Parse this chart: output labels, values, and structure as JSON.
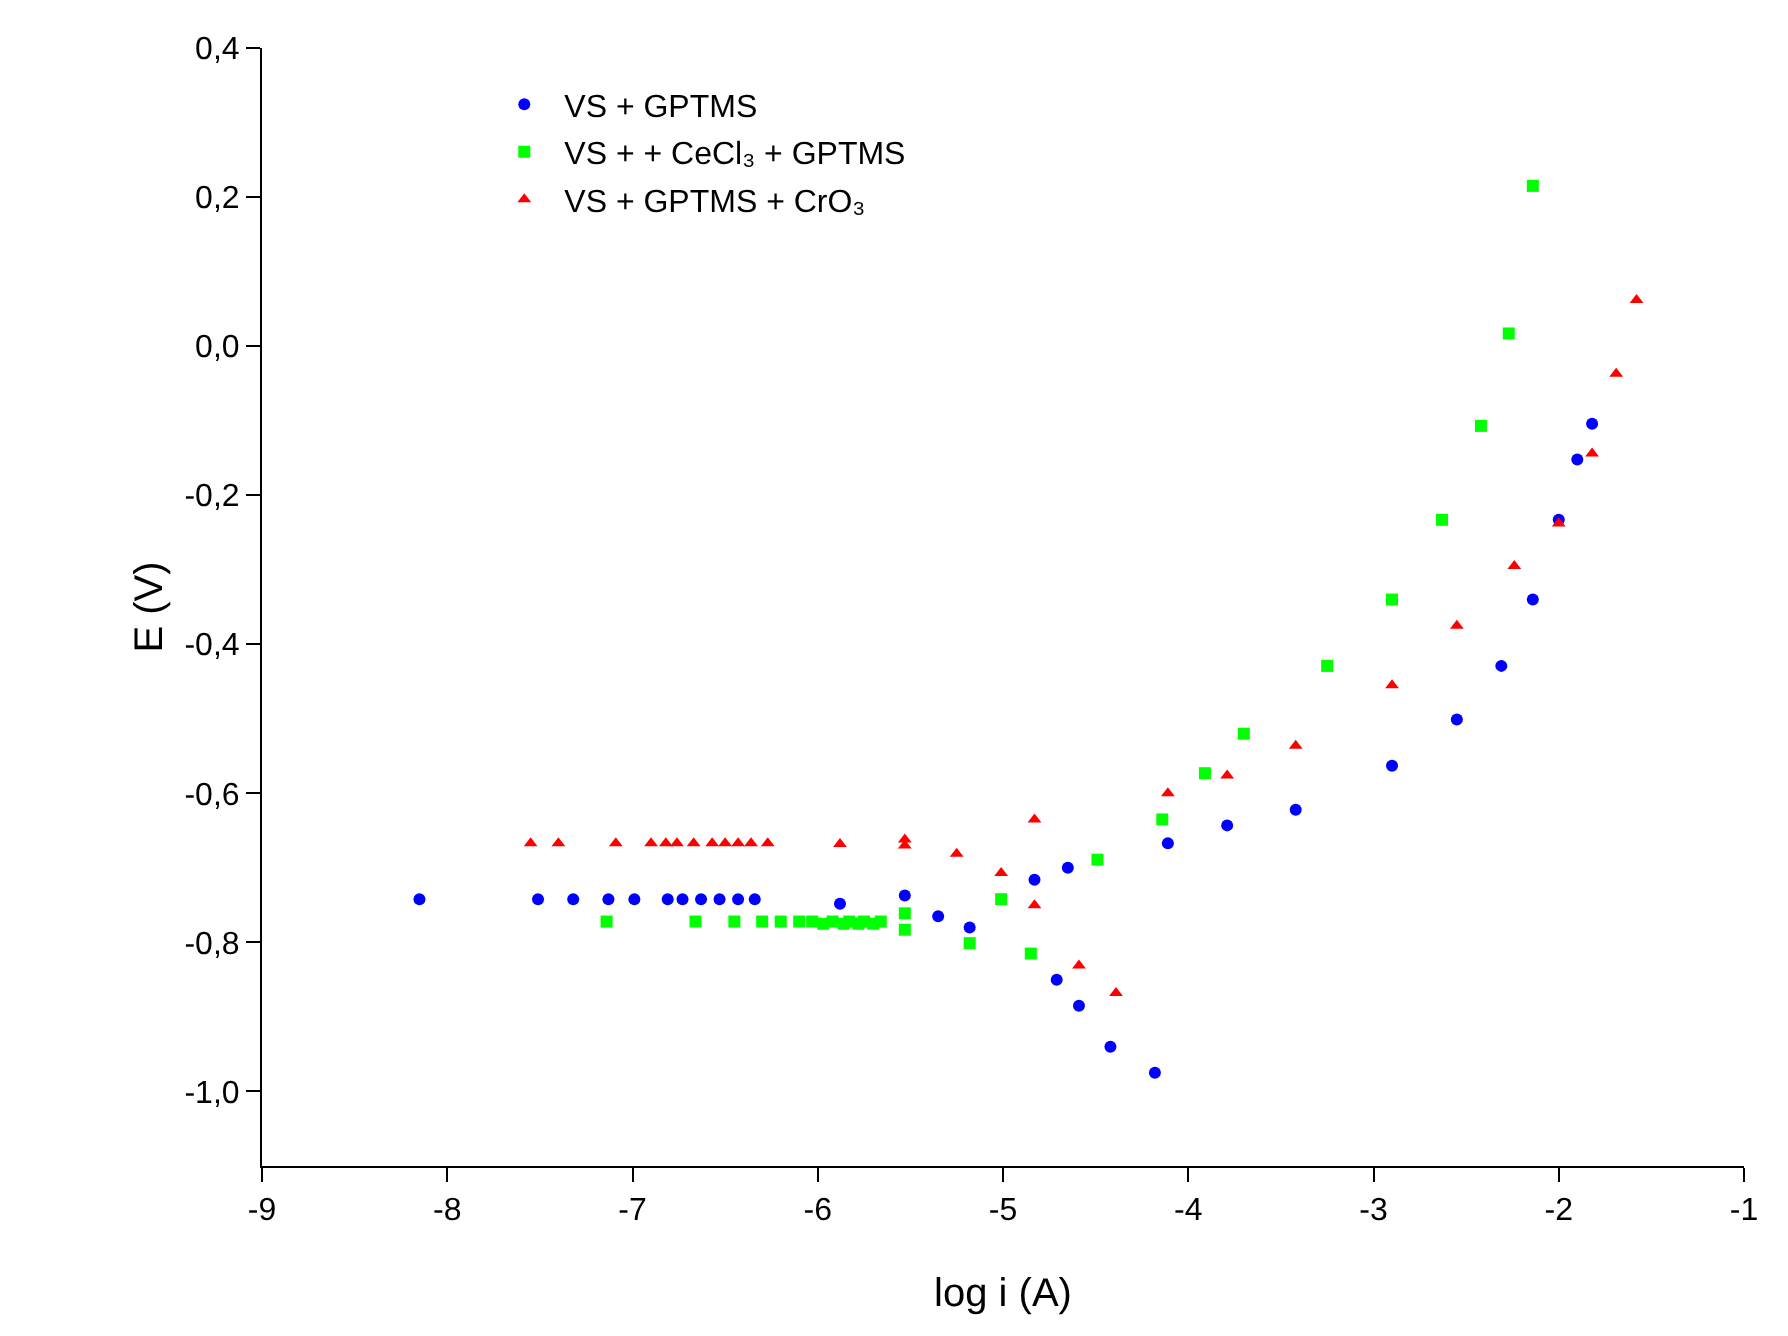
{
  "chart_data": {
    "type": "scatter",
    "xlabel": "log i (A)",
    "ylabel": "E (V)",
    "xlim": [
      -9,
      -1
    ],
    "xticks": [
      -9,
      -8,
      -7,
      -6,
      -5,
      -4,
      -3,
      -2,
      -1
    ],
    "ylim": [
      -1.1,
      0.4
    ],
    "yticks": [
      {
        "value": -1.0,
        "label": "-1,0"
      },
      {
        "value": -0.8,
        "label": "-0,8"
      },
      {
        "value": -0.6,
        "label": "-0,6"
      },
      {
        "value": -0.4,
        "label": "-0,4"
      },
      {
        "value": -0.2,
        "label": "-0,2"
      },
      {
        "value": 0.0,
        "label": "0,0"
      },
      {
        "value": 0.2,
        "label": "0,2"
      },
      {
        "value": 0.4,
        "label": "0,4"
      }
    ],
    "grid": false,
    "legend": "top left",
    "series": [
      {
        "name": "VS + GPTMS",
        "color": "#0000ff",
        "marker": "circle",
        "x": [
          -4.18,
          -4.42,
          -4.59,
          -4.71,
          -5.18,
          -5.35,
          -5.88,
          -6.34,
          -6.43,
          -6.53,
          -6.63,
          -6.73,
          -6.81,
          -6.99,
          -7.13,
          -7.32,
          -7.51,
          -8.15,
          -5.53,
          -4.83,
          -4.65,
          -4.11,
          -3.79,
          -3.42,
          -2.9,
          -2.55,
          -2.31,
          -2.14,
          -2.0,
          -1.9,
          -1.82
        ],
        "values": [
          -0.975,
          -0.94,
          -0.885,
          -0.85,
          -0.78,
          -0.765,
          -0.748,
          -0.742,
          -0.742,
          -0.742,
          -0.742,
          -0.742,
          -0.742,
          -0.742,
          -0.742,
          -0.742,
          -0.742,
          -0.742,
          -0.737,
          -0.716,
          -0.7,
          -0.667,
          -0.643,
          -0.622,
          -0.563,
          -0.501,
          -0.429,
          -0.34,
          -0.233,
          -0.152,
          -0.104
        ]
      },
      {
        "name": "VS + + CeCl₃ + GPTMS",
        "color": "#00ff00",
        "marker": "square",
        "x": [
          -4.85,
          -5.18,
          -5.53,
          -5.66,
          -5.7,
          -5.75,
          -5.78,
          -5.83,
          -5.86,
          -5.92,
          -5.97,
          -6.03,
          -6.1,
          -6.2,
          -6.3,
          -6.45,
          -6.66,
          -7.14,
          -5.53,
          -5.01,
          -4.49,
          -4.14,
          -3.91,
          -3.7,
          -3.25,
          -2.9,
          -2.63,
          -2.42,
          -2.27,
          -2.14
        ],
        "values": [
          -0.815,
          -0.801,
          -0.783,
          -0.772,
          -0.775,
          -0.772,
          -0.775,
          -0.772,
          -0.775,
          -0.772,
          -0.775,
          -0.772,
          -0.772,
          -0.772,
          -0.772,
          -0.772,
          -0.772,
          -0.772,
          -0.761,
          -0.742,
          -0.689,
          -0.635,
          -0.573,
          -0.52,
          -0.429,
          -0.34,
          -0.233,
          -0.107,
          0.017,
          0.215
        ]
      },
      {
        "name": "VS + GPTMS + CrO₃",
        "color": "#ff0000",
        "marker": "triangle",
        "x": [
          -4.39,
          -4.59,
          -4.83,
          -5.01,
          -5.25,
          -5.53,
          -5.88,
          -6.27,
          -6.36,
          -6.43,
          -6.5,
          -6.57,
          -6.67,
          -6.76,
          -6.82,
          -6.9,
          -7.09,
          -7.4,
          -7.55,
          -5.53,
          -4.83,
          -4.11,
          -3.79,
          -3.42,
          -2.9,
          -2.55,
          -2.24,
          -2.0,
          -1.82,
          -1.69,
          -1.58
        ],
        "values": [
          -0.868,
          -0.831,
          -0.75,
          -0.707,
          -0.681,
          -0.67,
          -0.668,
          -0.667,
          -0.667,
          -0.667,
          -0.667,
          -0.667,
          -0.667,
          -0.667,
          -0.667,
          -0.667,
          -0.667,
          -0.667,
          -0.667,
          -0.662,
          -0.635,
          -0.6,
          -0.576,
          -0.536,
          -0.455,
          -0.375,
          -0.295,
          -0.238,
          -0.144,
          -0.037,
          0.062
        ]
      }
    ]
  }
}
